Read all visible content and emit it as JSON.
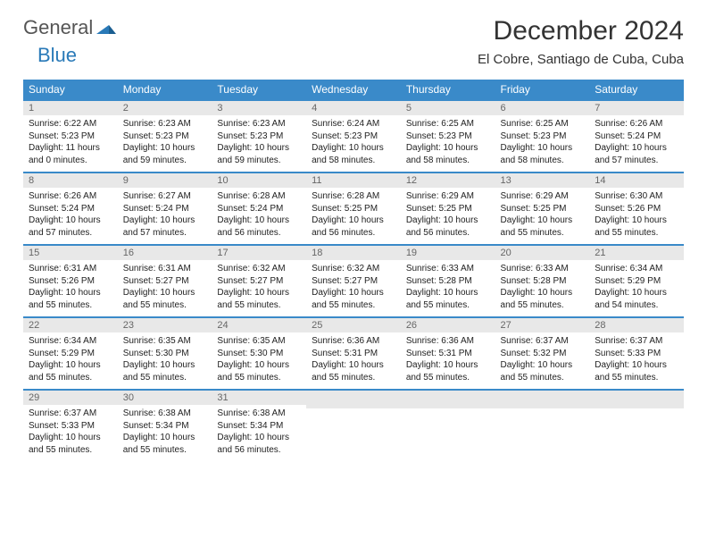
{
  "brand": {
    "part1": "General",
    "part2": "Blue"
  },
  "title": "December 2024",
  "location": "El Cobre, Santiago de Cuba, Cuba",
  "colors": {
    "header_bg": "#3a8ac9",
    "header_fg": "#ffffff",
    "daynum_bg": "#e8e8e8",
    "row_border": "#3a8ac9"
  },
  "dow": [
    "Sunday",
    "Monday",
    "Tuesday",
    "Wednesday",
    "Thursday",
    "Friday",
    "Saturday"
  ],
  "weeks": [
    [
      {
        "n": "1",
        "sr": "6:22 AM",
        "ss": "5:23 PM",
        "dl": "11 hours and 0 minutes."
      },
      {
        "n": "2",
        "sr": "6:23 AM",
        "ss": "5:23 PM",
        "dl": "10 hours and 59 minutes."
      },
      {
        "n": "3",
        "sr": "6:23 AM",
        "ss": "5:23 PM",
        "dl": "10 hours and 59 minutes."
      },
      {
        "n": "4",
        "sr": "6:24 AM",
        "ss": "5:23 PM",
        "dl": "10 hours and 58 minutes."
      },
      {
        "n": "5",
        "sr": "6:25 AM",
        "ss": "5:23 PM",
        "dl": "10 hours and 58 minutes."
      },
      {
        "n": "6",
        "sr": "6:25 AM",
        "ss": "5:23 PM",
        "dl": "10 hours and 58 minutes."
      },
      {
        "n": "7",
        "sr": "6:26 AM",
        "ss": "5:24 PM",
        "dl": "10 hours and 57 minutes."
      }
    ],
    [
      {
        "n": "8",
        "sr": "6:26 AM",
        "ss": "5:24 PM",
        "dl": "10 hours and 57 minutes."
      },
      {
        "n": "9",
        "sr": "6:27 AM",
        "ss": "5:24 PM",
        "dl": "10 hours and 57 minutes."
      },
      {
        "n": "10",
        "sr": "6:28 AM",
        "ss": "5:24 PM",
        "dl": "10 hours and 56 minutes."
      },
      {
        "n": "11",
        "sr": "6:28 AM",
        "ss": "5:25 PM",
        "dl": "10 hours and 56 minutes."
      },
      {
        "n": "12",
        "sr": "6:29 AM",
        "ss": "5:25 PM",
        "dl": "10 hours and 56 minutes."
      },
      {
        "n": "13",
        "sr": "6:29 AM",
        "ss": "5:25 PM",
        "dl": "10 hours and 55 minutes."
      },
      {
        "n": "14",
        "sr": "6:30 AM",
        "ss": "5:26 PM",
        "dl": "10 hours and 55 minutes."
      }
    ],
    [
      {
        "n": "15",
        "sr": "6:31 AM",
        "ss": "5:26 PM",
        "dl": "10 hours and 55 minutes."
      },
      {
        "n": "16",
        "sr": "6:31 AM",
        "ss": "5:27 PM",
        "dl": "10 hours and 55 minutes."
      },
      {
        "n": "17",
        "sr": "6:32 AM",
        "ss": "5:27 PM",
        "dl": "10 hours and 55 minutes."
      },
      {
        "n": "18",
        "sr": "6:32 AM",
        "ss": "5:27 PM",
        "dl": "10 hours and 55 minutes."
      },
      {
        "n": "19",
        "sr": "6:33 AM",
        "ss": "5:28 PM",
        "dl": "10 hours and 55 minutes."
      },
      {
        "n": "20",
        "sr": "6:33 AM",
        "ss": "5:28 PM",
        "dl": "10 hours and 55 minutes."
      },
      {
        "n": "21",
        "sr": "6:34 AM",
        "ss": "5:29 PM",
        "dl": "10 hours and 54 minutes."
      }
    ],
    [
      {
        "n": "22",
        "sr": "6:34 AM",
        "ss": "5:29 PM",
        "dl": "10 hours and 55 minutes."
      },
      {
        "n": "23",
        "sr": "6:35 AM",
        "ss": "5:30 PM",
        "dl": "10 hours and 55 minutes."
      },
      {
        "n": "24",
        "sr": "6:35 AM",
        "ss": "5:30 PM",
        "dl": "10 hours and 55 minutes."
      },
      {
        "n": "25",
        "sr": "6:36 AM",
        "ss": "5:31 PM",
        "dl": "10 hours and 55 minutes."
      },
      {
        "n": "26",
        "sr": "6:36 AM",
        "ss": "5:31 PM",
        "dl": "10 hours and 55 minutes."
      },
      {
        "n": "27",
        "sr": "6:37 AM",
        "ss": "5:32 PM",
        "dl": "10 hours and 55 minutes."
      },
      {
        "n": "28",
        "sr": "6:37 AM",
        "ss": "5:33 PM",
        "dl": "10 hours and 55 minutes."
      }
    ],
    [
      {
        "n": "29",
        "sr": "6:37 AM",
        "ss": "5:33 PM",
        "dl": "10 hours and 55 minutes."
      },
      {
        "n": "30",
        "sr": "6:38 AM",
        "ss": "5:34 PM",
        "dl": "10 hours and 55 minutes."
      },
      {
        "n": "31",
        "sr": "6:38 AM",
        "ss": "5:34 PM",
        "dl": "10 hours and 56 minutes."
      },
      null,
      null,
      null,
      null
    ]
  ],
  "labels": {
    "sunrise": "Sunrise:",
    "sunset": "Sunset:",
    "daylight": "Daylight:"
  }
}
